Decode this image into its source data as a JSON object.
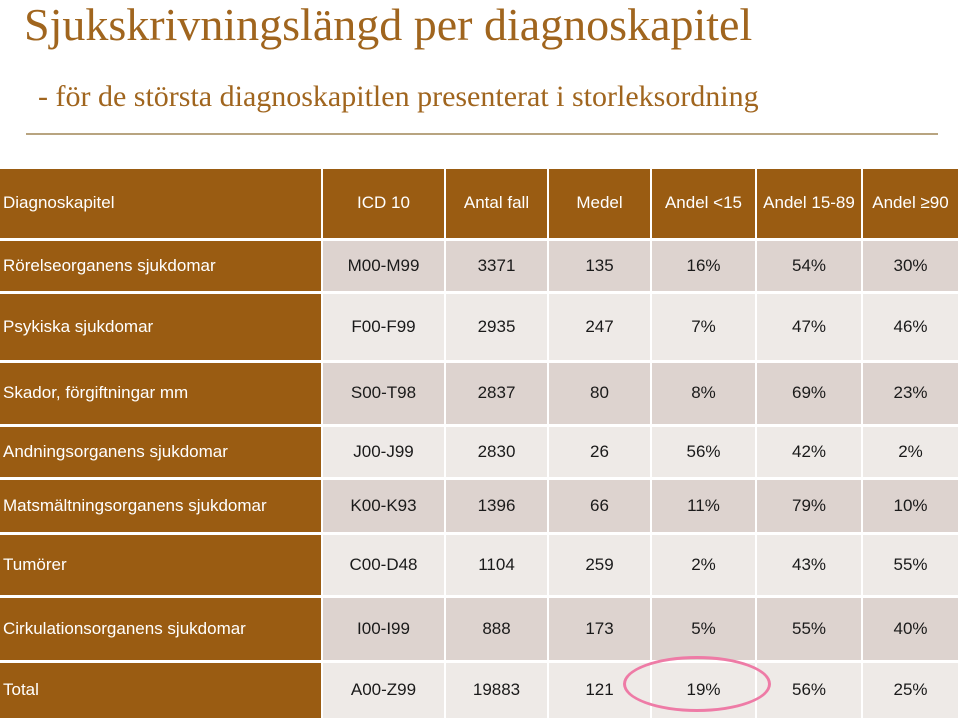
{
  "slide": {
    "title": "Sjukskrivningslängd per diagnoskapitel",
    "subtitle": "- för de största diagnoskapitlen presenterat i storleksordning"
  },
  "table": {
    "headers": [
      "Diagnoskapitel",
      "ICD 10",
      "Antal fall",
      "Medel",
      "Andel <15",
      "Andel 15-89",
      "Andel ≥90"
    ],
    "rows": [
      [
        "Rörelseorganens sjukdomar",
        "M00-M99",
        "3371",
        "135",
        "16%",
        "54%",
        "30%"
      ],
      [
        "Psykiska sjukdomar",
        "F00-F99",
        "2935",
        "247",
        "7%",
        "47%",
        "46%"
      ],
      [
        "Skador, förgiftningar mm",
        "S00-T98",
        "2837",
        "80",
        "8%",
        "69%",
        "23%"
      ],
      [
        "Andningsorganens sjukdomar",
        "J00-J99",
        "2830",
        "26",
        "56%",
        "42%",
        "2%"
      ],
      [
        "Matsmältningsorganens sjukdomar",
        "K00-K93",
        "1396",
        "66",
        "11%",
        "79%",
        "10%"
      ],
      [
        "Tumörer",
        "C00-D48",
        "1104",
        "259",
        "2%",
        "43%",
        "55%"
      ],
      [
        "Cirkulationsorganens sjukdomar",
        "I00-I99",
        "888",
        "173",
        "5%",
        "55%",
        "40%"
      ],
      [
        "Total",
        "A00-Z99",
        "19883",
        "121",
        "19%",
        "56%",
        "25%"
      ]
    ]
  },
  "colors": {
    "accent": "#9A5C12",
    "title": "#A0651E",
    "row_dark": "#DDD3CF",
    "row_light": "#EEEAE7",
    "highlight": "#EE7BA6"
  }
}
